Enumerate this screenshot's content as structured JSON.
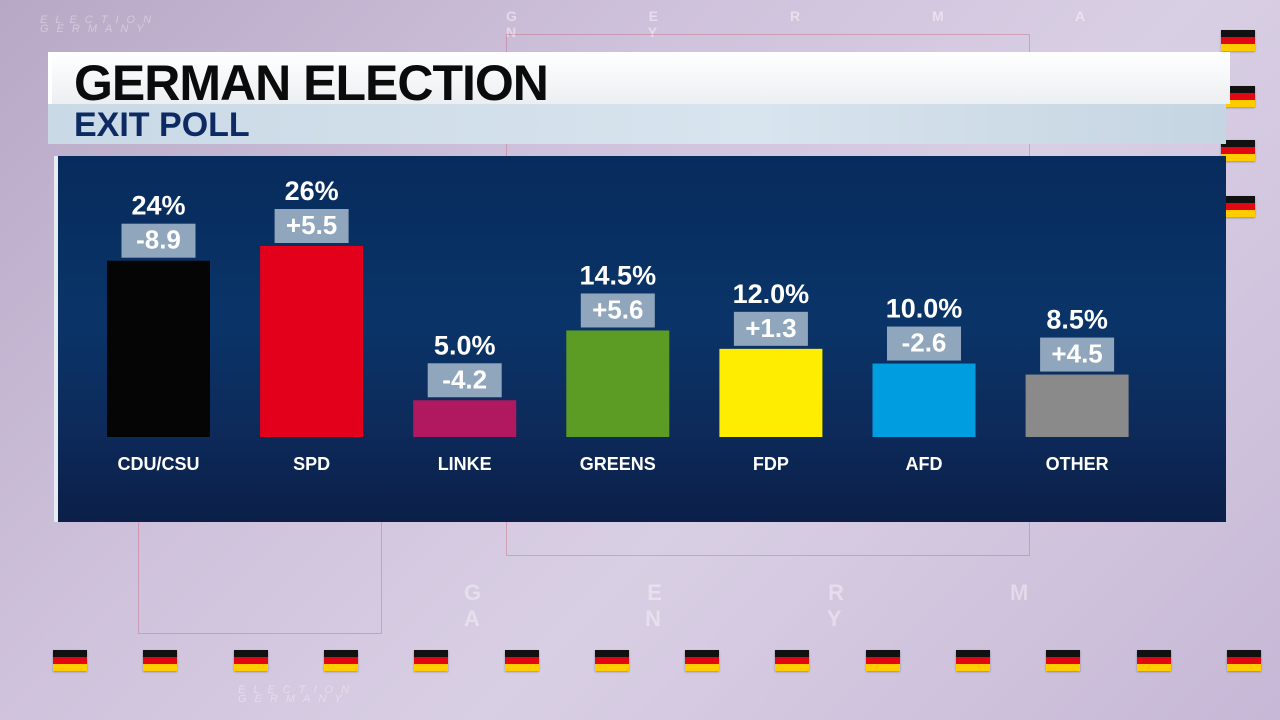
{
  "background": {
    "word_top": "G E R M A N Y",
    "word_mid": "G E R M A N Y",
    "small_line1": "ELECTION",
    "small_line2": "GERMANY",
    "small2_line1": "ELECTION",
    "small2_line2": "GERMANY",
    "flag_icon": "german-flag-icon"
  },
  "header": {
    "title": "GERMAN ELECTION",
    "subtitle": "EXIT POLL"
  },
  "colors": {
    "panel": "#0a3468",
    "label_box": "#8fa6bc",
    "text": "#ffffff"
  },
  "chart_data": {
    "type": "bar",
    "title": "GERMAN ELECTION",
    "subtitle": "EXIT POLL",
    "categories": [
      "CDU/CSU",
      "SPD",
      "LINKE",
      "GREENS",
      "FDP",
      "AFD",
      "OTHER"
    ],
    "values": [
      24,
      26,
      5.0,
      14.5,
      12.0,
      10.0,
      8.5
    ],
    "value_labels": [
      "24%",
      "26%",
      "5.0%",
      "14.5%",
      "12.0%",
      "10.0%",
      "8.5%"
    ],
    "changes": [
      "-8.9",
      "+5.5",
      "-4.2",
      "+5.6",
      "+1.3",
      "-2.6",
      "+4.5"
    ],
    "colors": [
      "#050505",
      "#e3001b",
      "#b0195f",
      "#5c9c24",
      "#ffed00",
      "#009ee0",
      "#8a8a8a"
    ],
    "ylim": [
      0,
      26
    ],
    "grid": false,
    "legend": "none"
  }
}
